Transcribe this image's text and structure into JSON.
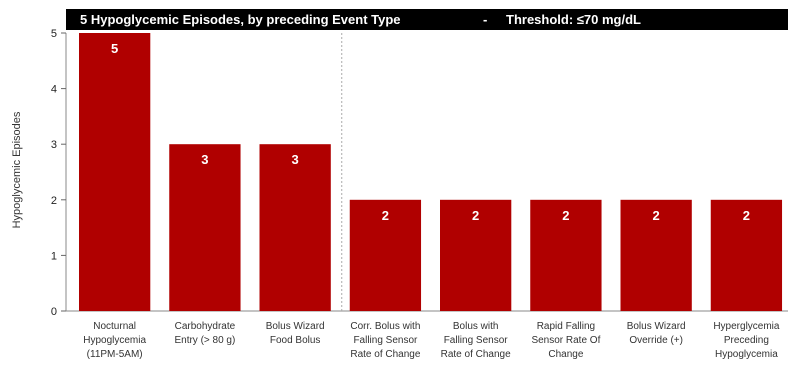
{
  "chart_data": {
    "type": "bar",
    "title": "5 Hypoglycemic Episodes, by preceding Event Type",
    "title_separator": "-",
    "threshold_label": "Threshold: ≤70 mg/dL",
    "ylabel": "Hypoglycemic Episodes",
    "xlabel": "",
    "ylim": [
      0,
      5
    ],
    "yticks": [
      0,
      1,
      2,
      3,
      4,
      5
    ],
    "categories": [
      [
        "Nocturnal",
        "Hypoglycemia",
        "(11PM-5AM)"
      ],
      [
        "Carbohydrate",
        "Entry (> 80 g)"
      ],
      [
        "Bolus Wizard",
        "Food Bolus"
      ],
      [
        "Corr. Bolus with",
        "Falling Sensor",
        "Rate of Change"
      ],
      [
        "Bolus with",
        "Falling Sensor",
        "Rate of Change"
      ],
      [
        "Rapid Falling",
        "Sensor Rate Of",
        "Change"
      ],
      [
        "Bolus Wizard",
        "Override (+)"
      ],
      [
        "Hyperglycemia",
        "Preceding",
        "Hypoglycemia"
      ]
    ],
    "values": [
      5,
      3,
      3,
      2,
      2,
      2,
      2,
      2
    ],
    "bar_color": "#b00000",
    "title_bar_color": "#000000",
    "grid": false,
    "divider_after_index": 2
  }
}
